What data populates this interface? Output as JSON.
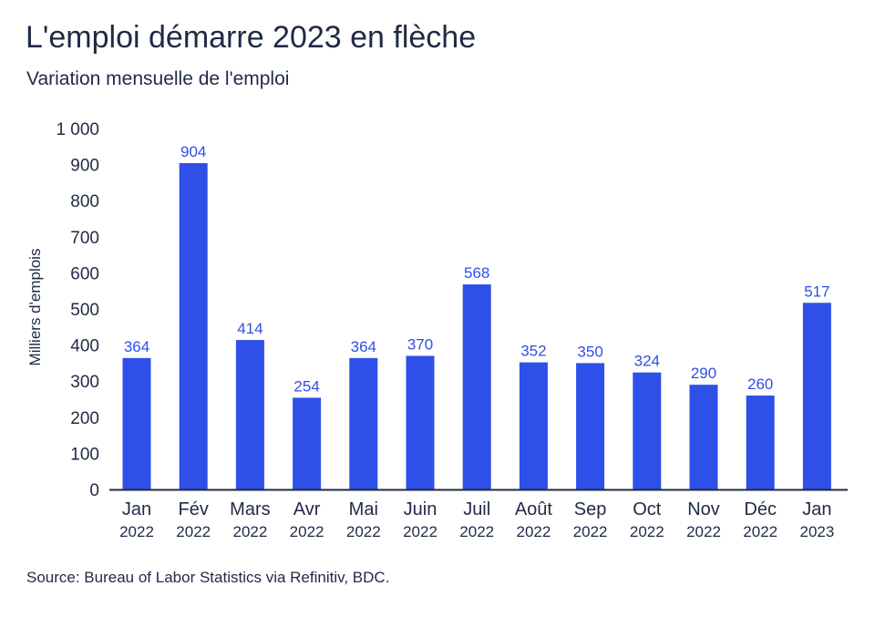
{
  "header": {
    "title": "L'emploi démarre 2023 en flèche",
    "subtitle": "Variation mensuelle de l'emploi"
  },
  "footer": {
    "source": "Source: Bureau of Labor Statistics via Refinitiv, BDC."
  },
  "colors": {
    "bar": "#2e4fe8",
    "value_label": "#2e4fe8",
    "axis": "#1f2a44"
  },
  "chart_data": {
    "type": "bar",
    "title": "L'emploi démarre 2023 en flèche",
    "subtitle": "Variation mensuelle de l'emploi",
    "xlabel": "",
    "ylabel": "Milliers d'emplois",
    "ylim": [
      0,
      1000
    ],
    "yticks": [
      0,
      100,
      200,
      300,
      400,
      500,
      600,
      700,
      800,
      900,
      1000
    ],
    "ytick_labels": [
      "0",
      "100",
      "200",
      "300",
      "400",
      "500",
      "600",
      "700",
      "800",
      "900",
      "1 000"
    ],
    "grid": false,
    "legend": "none",
    "categories": [
      {
        "month": "Jan",
        "year": "2022"
      },
      {
        "month": "Fév",
        "year": "2022"
      },
      {
        "month": "Mars",
        "year": "2022"
      },
      {
        "month": "Avr",
        "year": "2022"
      },
      {
        "month": "Mai",
        "year": "2022"
      },
      {
        "month": "Juin",
        "year": "2022"
      },
      {
        "month": "Juil",
        "year": "2022"
      },
      {
        "month": "Août",
        "year": "2022"
      },
      {
        "month": "Sep",
        "year": "2022"
      },
      {
        "month": "Oct",
        "year": "2022"
      },
      {
        "month": "Nov",
        "year": "2022"
      },
      {
        "month": "Déc",
        "year": "2022"
      },
      {
        "month": "Jan",
        "year": "2023"
      }
    ],
    "values": [
      364,
      904,
      414,
      254,
      364,
      370,
      568,
      352,
      350,
      324,
      290,
      260,
      517
    ]
  }
}
